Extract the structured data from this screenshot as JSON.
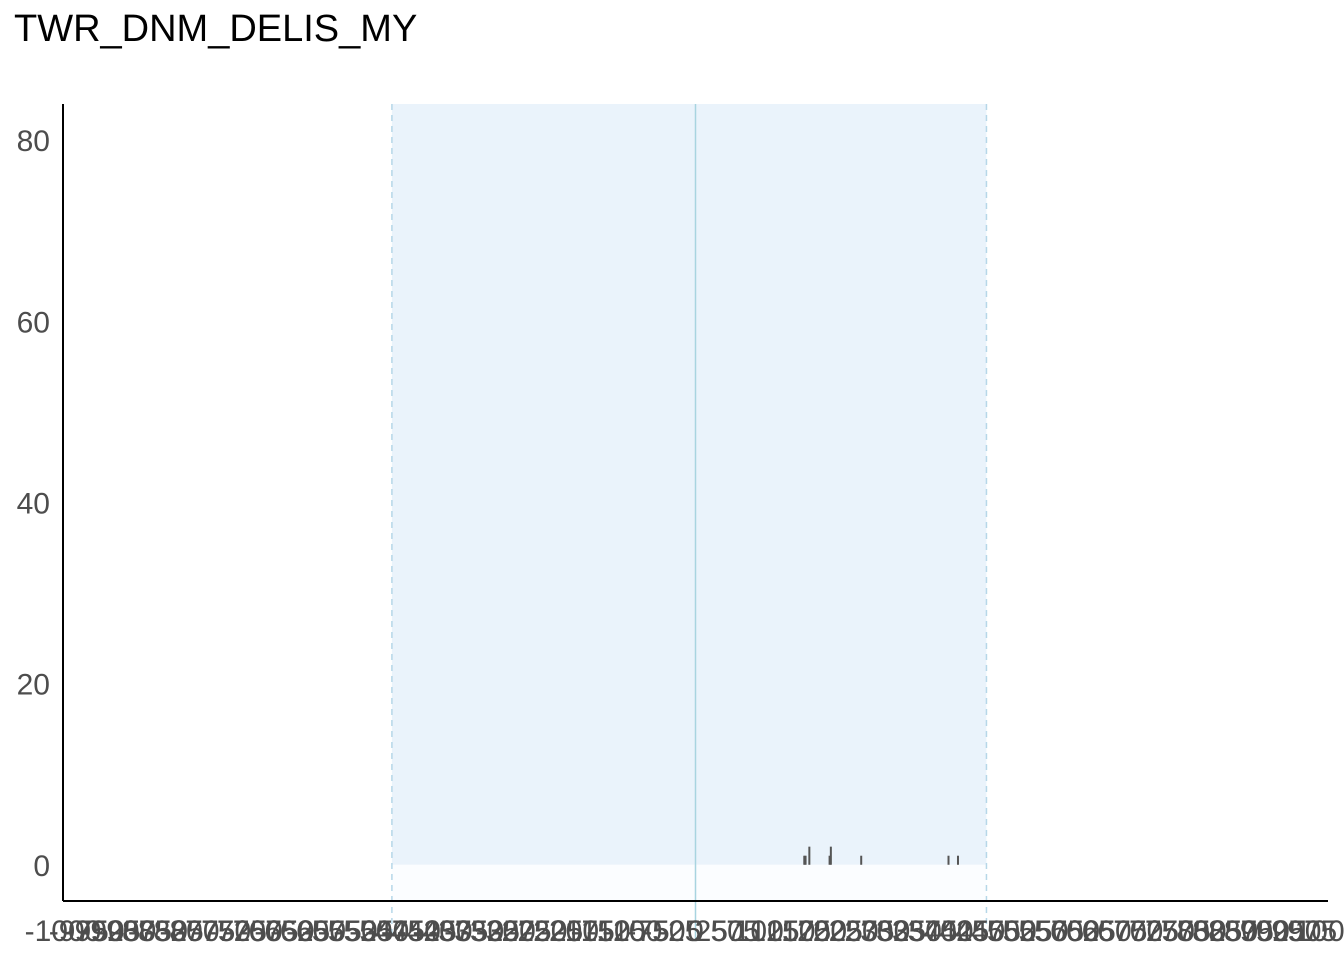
{
  "chart_data": {
    "type": "bar",
    "title": "TWR_DNM_DELIS_MY",
    "xlabel": "",
    "ylabel": "",
    "xlim": [
      -1000,
      1000
    ],
    "ylim": [
      -4,
      84
    ],
    "grid": false,
    "y_ticks": [
      "0",
      "20",
      "40",
      "60",
      "80"
    ],
    "y_tick_values": [
      0,
      20,
      40,
      60,
      80
    ],
    "x_tick_values": [
      -1000,
      -975,
      -950,
      -925,
      -900,
      -875,
      -850,
      -825,
      -800,
      -775,
      -750,
      -725,
      -700,
      -675,
      -650,
      -625,
      -600,
      -575,
      -550,
      -525,
      -500,
      -475,
      -450,
      -425,
      -400,
      -375,
      -350,
      -325,
      -300,
      -275,
      -250,
      -225,
      -200,
      -175,
      -150,
      -125,
      -100,
      -75,
      -50,
      -25,
      0,
      25,
      50,
      75,
      100,
      125,
      150,
      175,
      200,
      225,
      250,
      275,
      300,
      325,
      350,
      375,
      400,
      425,
      450,
      475,
      500,
      525,
      550,
      575,
      600,
      625,
      650,
      675,
      700,
      725,
      750,
      775,
      800,
      825,
      850,
      875,
      900,
      925,
      950,
      975,
      1000
    ],
    "shaded_region": {
      "x": [
        -480,
        460
      ],
      "y": [
        0,
        84
      ],
      "color": "#eaf3fb"
    },
    "center_line": {
      "x": 0,
      "color": "#a8d4e0"
    },
    "bar_color": "#555555",
    "x": [
      172,
      174,
      180,
      212,
      214,
      262,
      400,
      415
    ],
    "values": [
      1,
      1,
      2,
      1,
      2,
      1,
      1,
      1
    ]
  }
}
